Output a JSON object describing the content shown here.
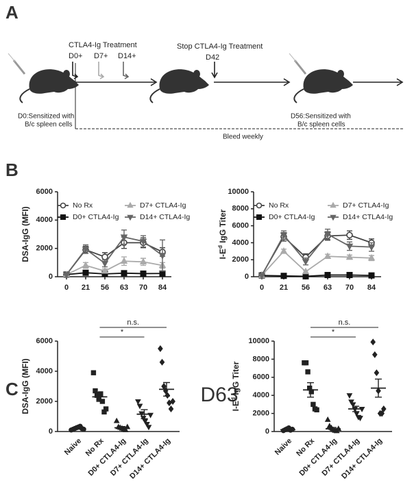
{
  "panel_labels": [
    "A",
    "B",
    "C"
  ],
  "timeline": {
    "treatment_title": "CTLA4-Ig Treatment",
    "starts": [
      "D0+",
      "D7+",
      "D14+"
    ],
    "stop_title": "Stop CTLA4-Ig Treatment",
    "stop_day": "D42",
    "sensitize_1": [
      "D0:Sensitized with",
      "B/c spleen cells"
    ],
    "sensitize_2": [
      "D56:Sensitized with",
      "B/c spleen cells"
    ],
    "bleed": "Bleed weekly"
  },
  "panel_c_title": "D63",
  "chart_data": [
    {
      "type": "line",
      "y_label": [
        "DSA-IgG (MFI)"
      ],
      "categories": [
        "0",
        "21",
        "56",
        "63",
        "70",
        "84"
      ],
      "ylim": [
        0,
        6000
      ],
      "yticks": [
        0,
        2000,
        4000,
        6000
      ],
      "legend": "top",
      "series": [
        {
          "name": "No Rx",
          "color": "#444444",
          "marker": "circle-open",
          "values": [
            150,
            1900,
            1400,
            2400,
            2400,
            1750
          ],
          "errors": [
            50,
            250,
            300,
            400,
            350,
            300
          ]
        },
        {
          "name": "D0+ CTLA4-Ig",
          "color": "#111111",
          "marker": "square",
          "values": [
            150,
            280,
            200,
            250,
            220,
            230
          ],
          "errors": [
            30,
            60,
            50,
            60,
            50,
            50
          ]
        },
        {
          "name": "D7+ CTLA4-Ig",
          "color": "#aaaaaa",
          "marker": "triangle",
          "values": [
            150,
            800,
            400,
            1100,
            1050,
            800
          ],
          "errors": [
            30,
            200,
            150,
            300,
            250,
            200
          ]
        },
        {
          "name": "D14+ CTLA4-Ig",
          "color": "#666666",
          "marker": "triangle-down",
          "values": [
            150,
            1950,
            950,
            2800,
            2500,
            1500
          ],
          "errors": [
            40,
            300,
            250,
            500,
            400,
            1100
          ]
        }
      ]
    },
    {
      "type": "line",
      "y_label": [
        "I-E",
        "d",
        " IgG Titer"
      ],
      "categories": [
        "0",
        "21",
        "56",
        "63",
        "70",
        "84"
      ],
      "ylim": [
        0,
        10000
      ],
      "yticks": [
        0,
        2000,
        4000,
        6000,
        8000,
        10000
      ],
      "legend": "top",
      "series": [
        {
          "name": "No Rx",
          "color": "#444444",
          "marker": "circle-open",
          "values": [
            200,
            4700,
            2300,
            4800,
            4900,
            4000
          ],
          "errors": [
            60,
            500,
            400,
            500,
            500,
            450
          ]
        },
        {
          "name": "D0+ CTLA4-Ig",
          "color": "#111111",
          "marker": "square",
          "values": [
            150,
            100,
            50,
            200,
            200,
            150
          ],
          "errors": [
            30,
            40,
            30,
            60,
            60,
            50
          ]
        },
        {
          "name": "D7+ CTLA4-Ig",
          "color": "#aaaaaa",
          "marker": "triangle",
          "values": [
            150,
            3000,
            600,
            2400,
            2300,
            2200
          ],
          "errors": [
            30,
            250,
            150,
            250,
            250,
            300
          ]
        },
        {
          "name": "D14+ CTLA4-Ig",
          "color": "#666666",
          "marker": "triangle-down",
          "values": [
            150,
            4900,
            1800,
            5000,
            3600,
            3500
          ],
          "errors": [
            40,
            500,
            400,
            600,
            500,
            500
          ]
        }
      ]
    },
    {
      "type": "scatter",
      "y_label": [
        "DSA-IgG (MFI)"
      ],
      "categories": [
        "Naive",
        "No Rx",
        "D0+ CTLA4-Ig",
        "D7+ CTLA4-Ig",
        "D14+ CTLA4-Ig"
      ],
      "ylim": [
        0,
        6000
      ],
      "yticks": [
        0,
        2000,
        4000,
        6000
      ],
      "color": "#222222",
      "markers": [
        "circle",
        "square",
        "triangle",
        "triangle-down",
        "diamond"
      ],
      "points": [
        [
          100,
          150,
          200,
          250,
          300,
          350,
          200,
          150
        ],
        [
          3900,
          2700,
          2400,
          2200,
          2500,
          2000,
          1300,
          1500
        ],
        [
          700,
          300,
          250,
          200,
          150,
          100,
          300
        ],
        [
          2000,
          1700,
          1200,
          900,
          700,
          500,
          300,
          1100
        ],
        [
          5500,
          4600,
          3000,
          2700,
          2400,
          1900,
          1500,
          2000
        ]
      ],
      "means": [
        200,
        2300,
        250,
        1150,
        2800
      ],
      "sems": [
        50,
        300,
        80,
        300,
        450
      ],
      "annotations": [
        "n.s.",
        "*"
      ]
    },
    {
      "type": "scatter",
      "y_label": [
        "I-E",
        "d",
        " IgG Titer"
      ],
      "categories": [
        "Naive",
        "No Rx",
        "D0+ CTLA4-Ig",
        "D7+ CTLA4-Ig",
        "D14+ CTLA4-Ig"
      ],
      "ylim": [
        0,
        10000
      ],
      "yticks": [
        0,
        2000,
        4000,
        6000,
        8000,
        10000
      ],
      "color": "#222222",
      "markers": [
        "circle",
        "square",
        "triangle",
        "triangle-down",
        "diamond"
      ],
      "points": [
        [
          100,
          200,
          300,
          400,
          150,
          250
        ],
        [
          7600,
          7600,
          6600,
          4800,
          4400,
          3000,
          2500,
          2400
        ],
        [
          1300,
          600,
          400,
          200,
          100,
          50,
          300
        ],
        [
          4000,
          3300,
          3000,
          2500,
          2000,
          1600,
          1500,
          2500
        ],
        [
          9900,
          8500,
          6500,
          4500,
          2000,
          2000,
          2500
        ]
      ],
      "means": [
        200,
        4600,
        300,
        2500,
        4800
      ],
      "sems": [
        100,
        800,
        150,
        300,
        1000
      ],
      "annotations": [
        "n.s.",
        "*"
      ]
    }
  ]
}
